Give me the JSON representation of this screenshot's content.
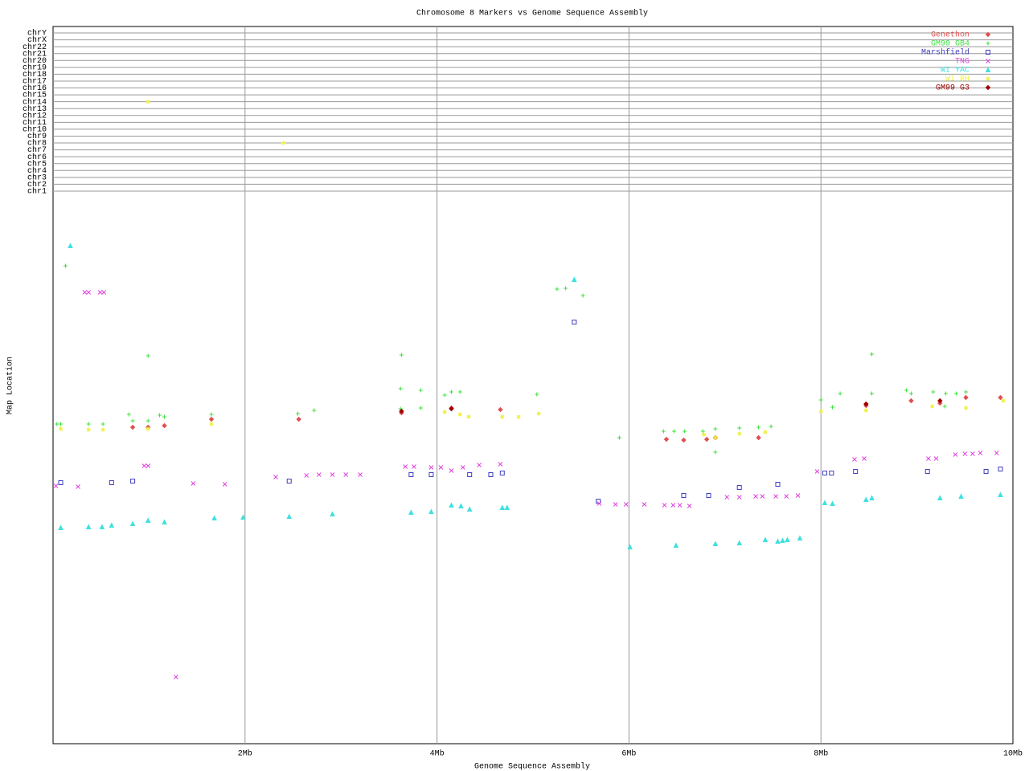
{
  "chart_data": {
    "type": "scatter",
    "title": "Chromosome 8 Markers vs Genome Sequence Assembly",
    "x_label": "Genome Sequence Assembly",
    "y_label": "Map Location",
    "xlim": [
      0,
      10
    ],
    "xticks": [
      {
        "value": 2,
        "label": "2Mb"
      },
      {
        "value": 4,
        "label": "4Mb"
      },
      {
        "value": 6,
        "label": "6Mb"
      },
      {
        "value": 8,
        "label": "8Mb"
      },
      {
        "value": 10,
        "label": "10Mb"
      }
    ],
    "ylim": [
      0,
      688
    ],
    "ycategories": [
      "chr1",
      "chr2",
      "chr3",
      "chr4",
      "chr5",
      "chr6",
      "chr7",
      "chr8",
      "chr9",
      "chr10",
      "chr11",
      "chr12",
      "chr13",
      "chr14",
      "chr15",
      "chr16",
      "chr17",
      "chr18",
      "chr19",
      "chr20",
      "chr21",
      "chr22",
      "chrX",
      "chrY"
    ],
    "grid": true,
    "legend": "top-right",
    "series": [
      {
        "name": "Genethon",
        "color": "#e05050",
        "marker": "diamond",
        "x": [
          0.99,
          0.83,
          1.16,
          1.65,
          2.56,
          3.63,
          4.15,
          4.66,
          6.39,
          6.57,
          6.81,
          6.9,
          7.35,
          8.47,
          8.94,
          9.24,
          9.87,
          9.51
        ],
        "values": [
          394,
          394,
          396,
          404,
          404,
          412,
          418,
          416,
          379,
          378,
          379,
          381,
          381,
          421,
          427,
          424,
          431,
          431
        ]
      },
      {
        "name": "GM99 GB4",
        "color": "#40e040",
        "marker": "plus",
        "x": [
          0.04,
          0.08,
          0.13,
          0.37,
          0.52,
          0.79,
          0.83,
          0.99,
          0.99,
          1.11,
          1.16,
          1.65,
          2.55,
          2.72,
          3.63,
          3.62,
          3.62,
          3.83,
          3.83,
          4.08,
          4.15,
          4.24,
          5.04,
          5.25,
          5.34,
          5.52,
          5.9,
          6.36,
          6.47,
          6.58,
          6.77,
          6.9,
          6.9,
          7.15,
          7.35,
          7.48,
          8.0,
          8.2,
          8.53,
          8.53,
          8.89,
          8.94,
          9.17,
          9.3,
          9.41,
          9.51,
          9.29,
          8.12
        ],
        "values": [
          398,
          398,
          595,
          398,
          398,
          410,
          402,
          483,
          402,
          409,
          407,
          410,
          411,
          415,
          484,
          442,
          417,
          440,
          418,
          434,
          438,
          438,
          435,
          566,
          567,
          558,
          381,
          389,
          389,
          389,
          389,
          392,
          363,
          393,
          394,
          395,
          428,
          436,
          485,
          436,
          440,
          436,
          438,
          436,
          436,
          438,
          420,
          419
        ]
      },
      {
        "name": "Marshfield",
        "color": "#4040c0",
        "marker": "square",
        "x": [
          0.08,
          0.61,
          0.83,
          2.46,
          3.73,
          3.94,
          4.34,
          4.56,
          4.68,
          5.43,
          5.68,
          6.57,
          6.83,
          7.15,
          7.55,
          8.04,
          8.11,
          8.36,
          9.11,
          9.72,
          9.87
        ],
        "values": [
          325,
          325,
          327,
          327,
          335,
          335,
          335,
          335,
          337,
          525,
          302,
          309,
          309,
          319,
          323,
          337,
          337,
          339,
          339,
          339,
          342
        ]
      },
      {
        "name": "TNG",
        "color": "#e040e0",
        "marker": "x",
        "x": [
          0.03,
          0.26,
          0.33,
          0.37,
          0.49,
          0.53,
          0.95,
          0.99,
          1.46,
          1.79,
          1.28,
          2.32,
          2.64,
          2.77,
          2.91,
          3.05,
          3.2,
          3.67,
          3.76,
          3.94,
          4.04,
          4.15,
          4.27,
          4.44,
          4.66,
          5.69,
          5.86,
          5.97,
          6.16,
          6.37,
          6.46,
          6.53,
          6.63,
          7.02,
          7.15,
          7.32,
          7.39,
          7.53,
          7.64,
          7.76,
          7.96,
          8.35,
          8.45,
          9.12,
          9.2,
          9.4,
          9.5,
          9.58,
          9.66,
          9.83
        ],
        "values": [
          321,
          320,
          562,
          562,
          562,
          562,
          346,
          346,
          324,
          323,
          83,
          332,
          334,
          335,
          335,
          335,
          335,
          345,
          345,
          344,
          344,
          340,
          344,
          347,
          348,
          299,
          298,
          298,
          298,
          297,
          297,
          297,
          296,
          307,
          307,
          308,
          308,
          308,
          308,
          309,
          339,
          354,
          355,
          355,
          355,
          360,
          361,
          361,
          362,
          362
        ]
      },
      {
        "name": "WI YAC",
        "color": "#40e0e0",
        "marker": "triangle",
        "x": [
          0.18,
          0.08,
          0.37,
          0.51,
          0.61,
          0.83,
          0.99,
          1.16,
          1.68,
          1.98,
          2.46,
          2.91,
          3.73,
          3.94,
          4.15,
          4.25,
          4.34,
          4.68,
          4.73,
          5.43,
          6.01,
          6.49,
          6.9,
          7.15,
          7.42,
          7.55,
          7.6,
          7.65,
          7.78,
          8.04,
          8.12,
          8.47,
          8.53,
          9.24,
          9.46,
          9.87
        ],
        "values": [
          620,
          269,
          270,
          270,
          272,
          274,
          278,
          276,
          281,
          282,
          283,
          286,
          288,
          289,
          297,
          296,
          292,
          294,
          294,
          578,
          245,
          247,
          249,
          250,
          254,
          252,
          253,
          254,
          256,
          300,
          299,
          304,
          306,
          306,
          308,
          310
        ]
      },
      {
        "name": "WI RH",
        "color": "#f0f040",
        "marker": "star",
        "x": [
          0.08,
          0.37,
          0.52,
          0.99,
          1.65,
          4.08,
          4.24,
          4.33,
          4.68,
          4.85,
          5.06,
          6.78,
          6.9,
          7.15,
          7.42,
          8.0,
          8.47,
          9.16,
          9.51,
          9.9
        ],
        "values": [
          392,
          391,
          391,
          392,
          398,
          413,
          410,
          407,
          407,
          407,
          411,
          385,
          381,
          386,
          388,
          414,
          415,
          420,
          418,
          427
        ],
        "other_chrom_x": [
          0.99,
          2.4
        ],
        "other_chrom": [
          "chr14",
          "chr8"
        ]
      },
      {
        "name": "GM99 G3",
        "color": "#a00000",
        "marker": "diamond",
        "x": [
          3.63,
          4.15,
          8.47,
          9.24
        ],
        "values": [
          414,
          417,
          423,
          427
        ]
      }
    ]
  }
}
